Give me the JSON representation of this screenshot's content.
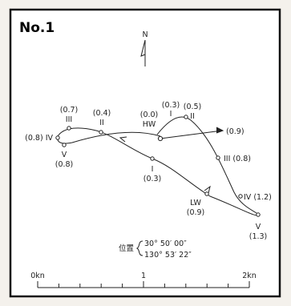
{
  "figure_id": "No.1",
  "north": "N",
  "points": [
    {
      "label": "(0.0)",
      "sub": "HW"
    },
    {
      "label": "I",
      "value": "(0.3)"
    },
    {
      "label": "II",
      "value": "(0.5)"
    },
    {
      "label": "III (0.8)"
    },
    {
      "label": "IV (1.2)"
    },
    {
      "label": "V",
      "value": "(1.3)"
    },
    {
      "label": "LW",
      "value": "(0.9)"
    },
    {
      "label": "I",
      "value": "(0.3)"
    },
    {
      "label": "II",
      "value": "(0.4)"
    },
    {
      "label": "III",
      "value": "(0.7)"
    },
    {
      "label": "(0.8) IV"
    },
    {
      "label": "V",
      "value": "(0.8)"
    }
  ],
  "arrow_label": "(0.9)",
  "location": {
    "label": "位置",
    "lat": "30° 50′ 00″",
    "lon": "130° 53′ 22″"
  },
  "scale": {
    "start": "0kn",
    "mid": "1",
    "end": "2kn"
  }
}
